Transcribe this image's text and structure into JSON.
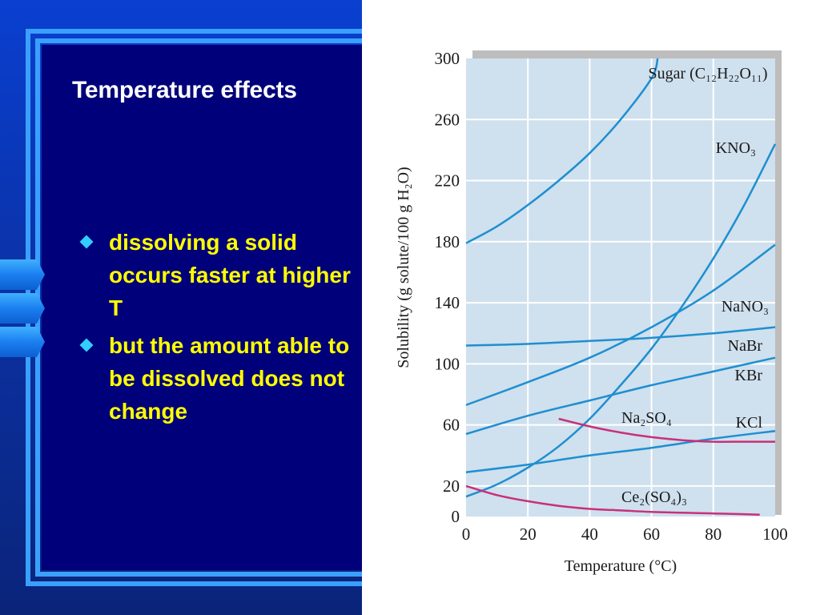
{
  "slide": {
    "title": "Temperature effects",
    "bullets": [
      "dissolving a solid occurs faster at higher T",
      "but the amount able to be dissolved does not change"
    ],
    "bullet_icon": "diamond-bullet",
    "colors": {
      "background": "#00007a",
      "accent": "#3aa0ff",
      "title": "#ffffff",
      "bullet_text": "#ffff00",
      "bullet_icon": "#33ccff"
    }
  },
  "chart_data": {
    "type": "line",
    "xlabel": "Temperature (°C)",
    "ylabel": "Solubility (g solute/100 g H₂O)",
    "xlim": [
      0,
      100
    ],
    "ylim": [
      0,
      300
    ],
    "x_ticks": [
      0,
      20,
      40,
      60,
      80,
      100
    ],
    "y_ticks": [
      0,
      20,
      60,
      100,
      140,
      180,
      220,
      260,
      300
    ],
    "grid": true,
    "plot_bg": "#cfe0ee",
    "series": [
      {
        "name": "Sugar (C₁₂H₂₂O₁₁)",
        "color": "#1e8fd0",
        "x": [
          0,
          10,
          20,
          30,
          40,
          50,
          60,
          62
        ],
        "y": [
          179,
          190,
          204,
          220,
          238,
          260,
          287,
          300
        ]
      },
      {
        "name": "KNO₃",
        "color": "#1e8fd0",
        "x": [
          0,
          10,
          20,
          30,
          40,
          50,
          60,
          70,
          80,
          90,
          100
        ],
        "y": [
          13,
          21,
          32,
          46,
          64,
          86,
          110,
          138,
          169,
          204,
          244
        ]
      },
      {
        "name": "NaNO₃",
        "color": "#1e8fd0",
        "x": [
          0,
          20,
          40,
          60,
          80,
          100
        ],
        "y": [
          73,
          88,
          104,
          124,
          148,
          178
        ]
      },
      {
        "name": "NaBr",
        "color": "#1e8fd0",
        "x": [
          0,
          20,
          40,
          60,
          80,
          100
        ],
        "y": [
          112,
          113,
          115,
          117,
          120,
          124
        ]
      },
      {
        "name": "KBr",
        "color": "#1e8fd0",
        "x": [
          0,
          20,
          40,
          60,
          80,
          100
        ],
        "y": [
          54,
          66,
          76,
          86,
          95,
          104
        ]
      },
      {
        "name": "KCl",
        "color": "#1e8fd0",
        "x": [
          0,
          20,
          40,
          60,
          80,
          100
        ],
        "y": [
          29,
          34,
          40,
          45,
          51,
          56
        ]
      },
      {
        "name": "Na₂SO₄",
        "color": "#c8307a",
        "x": [
          30,
          40,
          50,
          60,
          70,
          80,
          90,
          100
        ],
        "y": [
          64,
          59,
          55,
          52,
          50,
          49,
          49,
          49
        ]
      },
      {
        "name": "Ce₂(SO₄)₃",
        "color": "#c8307a",
        "x": [
          0,
          10,
          20,
          30,
          40,
          50,
          60,
          70,
          80,
          90,
          95
        ],
        "y": [
          20,
          14,
          10,
          7,
          5,
          4,
          3,
          2.5,
          2,
          1.5,
          1.2
        ]
      }
    ]
  }
}
